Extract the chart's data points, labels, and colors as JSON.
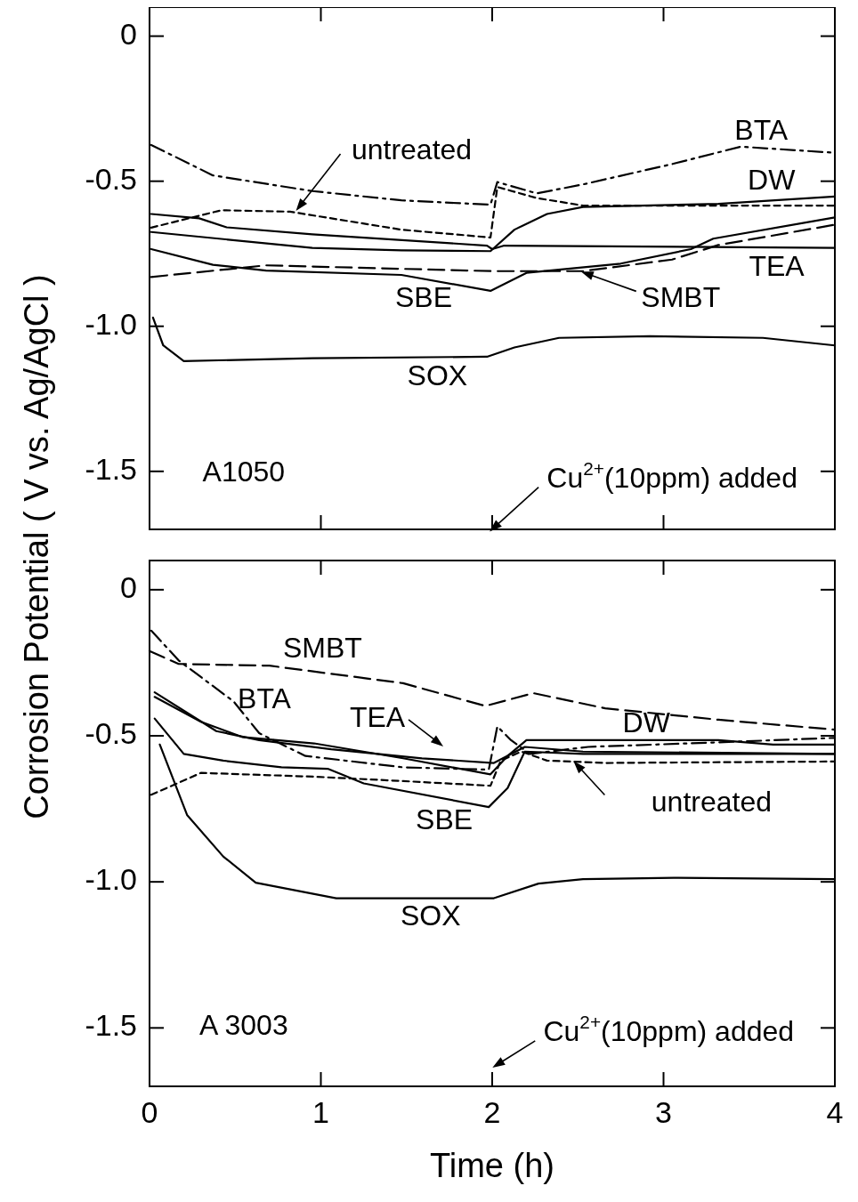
{
  "chart_data": [
    {
      "type": "line",
      "ylabel": "Corrosion Potential ( V vs. Ag/AgCl )",
      "xlim": [
        0,
        4
      ],
      "xticks": [
        {
          "value": 0,
          "label": null
        },
        {
          "value": 1,
          "label": null
        },
        {
          "value": 2,
          "label": null
        },
        {
          "value": 3,
          "label": null
        },
        {
          "value": 4,
          "label": null
        }
      ],
      "ylim": [
        -1.7,
        0.1
      ],
      "yticks": [
        0,
        -0.5,
        {
          "value": -1,
          "label": "-1.0"
        },
        -1.5
      ],
      "tick_labels": "y",
      "series": [
        {
          "name": "BTA",
          "color": "#000000",
          "line_style": "dashdot",
          "x": [
            0.01,
            0.37,
            0.95,
            1.47,
            1.99,
            2.03,
            2.26,
            2.53,
            3.05,
            3.45,
            4
          ],
          "values": [
            -0.375,
            -0.48,
            -0.534,
            -0.566,
            -0.581,
            -0.503,
            -0.542,
            -0.511,
            -0.441,
            -0.381,
            -0.402
          ]
        },
        {
          "name": "untreated",
          "color": "#000000",
          "line_style": "dotted",
          "x": [
            0.01,
            0.42,
            0.82,
            1.47,
            1.99,
            2.03,
            2.26,
            2.53,
            3.39,
            4
          ],
          "values": [
            -0.66,
            -0.6,
            -0.605,
            -0.667,
            -0.694,
            -0.52,
            -0.558,
            -0.584,
            -0.584,
            -0.584
          ]
        },
        {
          "name": "DW",
          "color": "#000000",
          "line_style": "solid",
          "x": [
            0.01,
            0.95,
            1.47,
            1.99,
            2.13,
            2.32,
            2.53,
            3.32,
            4
          ],
          "values": [
            -0.675,
            -0.73,
            -0.738,
            -0.741,
            -0.667,
            -0.613,
            -0.589,
            -0.578,
            -0.553
          ]
        },
        {
          "name": "TEA",
          "color": "#000000",
          "line_style": "solid",
          "x": [
            0.01,
            0.29,
            0.45,
            0.95,
            1.97,
            2.0,
            2.07,
            4
          ],
          "values": [
            -0.613,
            -0.628,
            -0.659,
            -0.683,
            -0.722,
            -0.734,
            -0.722,
            -0.73
          ]
        },
        {
          "name": "SBE",
          "color": "#000000",
          "line_style": "solid",
          "x": [
            0.01,
            0.37,
            0.68,
            1.47,
            1.99,
            2.2,
            2.75,
            3.16,
            3.29,
            4
          ],
          "values": [
            -0.734,
            -0.788,
            -0.808,
            -0.823,
            -0.878,
            -0.816,
            -0.784,
            -0.734,
            -0.698,
            -0.625
          ]
        },
        {
          "name": "SMBT",
          "color": "#000000",
          "line_style": "dashed",
          "x": [
            0.01,
            0.68,
            2.0,
            2.53,
            3.05,
            3.32,
            4
          ],
          "values": [
            -0.83,
            -0.79,
            -0.81,
            -0.81,
            -0.77,
            -0.72,
            -0.65
          ]
        },
        {
          "name": "SOX",
          "color": "#000000",
          "line_style": "solid",
          "x": [
            0.02,
            0.08,
            0.2,
            0.95,
            1.97,
            2.13,
            2.39,
            2.92,
            3.58,
            4
          ],
          "values": [
            -0.97,
            -1.066,
            -1.12,
            -1.11,
            -1.105,
            -1.073,
            -1.04,
            -1.034,
            -1.04,
            -1.066
          ]
        }
      ],
      "annotations": [
        "A1050",
        "Cu$^{2+}$(10ppm) added"
      ]
    },
    {
      "type": "line",
      "xlabel": "Time (h)",
      "xlim": [
        0,
        4
      ],
      "xticks": [
        0,
        1,
        2,
        3,
        4
      ],
      "ylim": [
        -1.7,
        0.1
      ],
      "yticks": [
        0,
        -0.5,
        {
          "value": -1,
          "label": "-1.0"
        },
        -1.5
      ],
      "series": [
        {
          "name": "SMBT",
          "color": "#000000",
          "line_style": "dashed",
          "x": [
            0,
            0.17,
            0.7,
            1.48,
            1.96,
            2.24,
            2.66,
            3.32,
            4
          ],
          "values": [
            -0.21,
            -0.254,
            -0.26,
            -0.32,
            -0.398,
            -0.354,
            -0.406,
            -0.445,
            -0.479
          ]
        },
        {
          "name": "BTA",
          "color": "#000000",
          "line_style": "dashdot",
          "x": [
            0.01,
            0.17,
            0.33,
            0.49,
            0.64,
            0.91,
            1.48,
            1.98,
            2.03,
            2.11,
            2.22,
            2.56,
            3.29,
            4
          ],
          "values": [
            -0.14,
            -0.242,
            -0.312,
            -0.382,
            -0.491,
            -0.569,
            -0.608,
            -0.616,
            -0.468,
            -0.515,
            -0.562,
            -0.538,
            -0.523,
            -0.507
          ]
        },
        {
          "name": "untreated",
          "color": "#000000",
          "line_style": "dotted",
          "x": [
            0.01,
            0.3,
            0.96,
            1.48,
            1.99,
            2.05,
            2.17,
            2.32,
            2.66,
            4
          ],
          "values": [
            -0.702,
            -0.627,
            -0.64,
            -0.655,
            -0.671,
            -0.585,
            -0.554,
            -0.585,
            -0.593,
            -0.588
          ]
        },
        {
          "name": "DW",
          "color": "#000000",
          "line_style": "solid",
          "x": [
            0.03,
            0.3,
            0.54,
            0.96,
            1.48,
            1.99,
            2.09,
            2.2,
            2.8,
            3.32,
            3.64,
            4
          ],
          "values": [
            -0.367,
            -0.452,
            -0.504,
            -0.526,
            -0.577,
            -0.632,
            -0.569,
            -0.515,
            -0.515,
            -0.515,
            -0.53,
            -0.53
          ]
        },
        {
          "name": "TEA",
          "color": "#000000",
          "line_style": "solid",
          "x": [
            0.03,
            0.39,
            0.64,
            1.06,
            1.59,
            2.01,
            2.19,
            2.53,
            4
          ],
          "values": [
            -0.351,
            -0.484,
            -0.515,
            -0.546,
            -0.577,
            -0.593,
            -0.538,
            -0.554,
            -0.562
          ]
        },
        {
          "name": "SBE",
          "color": "#000000",
          "line_style": "solid",
          "x": [
            0.03,
            0.2,
            0.43,
            0.77,
            1.04,
            1.12,
            1.25,
            1.98,
            2.09,
            2.19,
            2.53,
            4
          ],
          "values": [
            -0.441,
            -0.562,
            -0.585,
            -0.608,
            -0.613,
            -0.632,
            -0.663,
            -0.744,
            -0.679,
            -0.554,
            -0.562,
            -0.562
          ]
        },
        {
          "name": "SOX",
          "color": "#000000",
          "line_style": "solid",
          "x": [
            0.06,
            0.22,
            0.43,
            0.62,
            1.09,
            2.01,
            2.27,
            2.53,
            3.06,
            4
          ],
          "values": [
            -0.53,
            -0.772,
            -0.913,
            -1.003,
            -1.056,
            -1.056,
            -1.006,
            -0.991,
            -0.986,
            -0.991
          ]
        }
      ],
      "annotations": [
        "A 3003",
        "Cu$^{2+}$(10ppm) added"
      ]
    }
  ]
}
